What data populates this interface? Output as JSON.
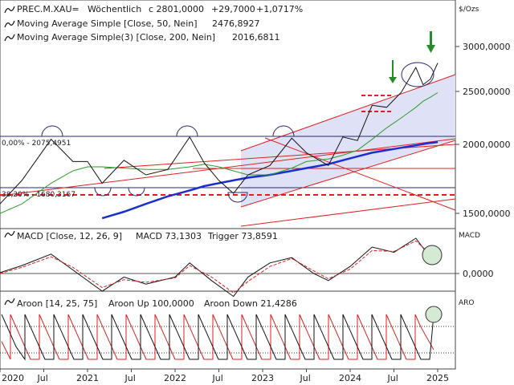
{
  "colors": {
    "price": "#111111",
    "ma50": "#2e9a2e",
    "ma200": "#1a2fd0",
    "trend": "#dd2020",
    "channel_fill": "#dfe1f6",
    "macd_signal": "#dd2020",
    "aroon_down": "#dd2020",
    "value_blue": "#1a2fd0",
    "value_green": "#2e9a2e",
    "arrow": "#2a8a2a"
  },
  "header": {
    "symbol": "PREC.M.XAU=",
    "period": "Wöchentlich",
    "last_close": "c 2801,0000",
    "change": "+29,7000",
    "change_pct": "+1,0717%",
    "ma50_label": "Moving Average Simple [Close, 50, Nein]",
    "ma50_value": "2476,8927",
    "ma200_label": "Moving Average Simple(3) [Close, 200, Nein]",
    "ma200_value": "2016,6811"
  },
  "price_panel": {
    "axis_unit": "$/Ozs",
    "ticks": [
      "3000,0000",
      "2500,0000",
      "2000,0000",
      "1500,0000"
    ],
    "fib_0_label": "0,00% - 2075,4951",
    "fib_38_label": "38,20% - 1680,3167"
  },
  "macd_panel": {
    "label": "MACD [Close, 12, 26, 9]",
    "macd_value": "MACD 73,1303",
    "trigger": "Trigger 73,8591",
    "axis_label": "MACD",
    "zero_tick": "0,0000"
  },
  "aroon_panel": {
    "label": "Aroon [14, 25, 75]",
    "up": "Aroon Up 100,0000",
    "down": "Aroon Down 21,4286",
    "axis_label": "ARO"
  },
  "x_axis": {
    "labels": [
      "2020",
      "Jul",
      "2021",
      "Jul",
      "2022",
      "Jul",
      "2023",
      "Jul",
      "2024",
      "Jul",
      "2025"
    ]
  },
  "chart_data": [
    {
      "type": "line",
      "panel": "price",
      "scale": "log",
      "ylim": [
        1400,
        3200
      ],
      "x": [
        "2020-01",
        "2020-04",
        "2020-08",
        "2020-11",
        "2021-01",
        "2021-03",
        "2021-06",
        "2021-09",
        "2021-12",
        "2022-03",
        "2022-05",
        "2022-07",
        "2022-09",
        "2022-11",
        "2023-02",
        "2023-05",
        "2023-07",
        "2023-10",
        "2023-12",
        "2024-02",
        "2024-04",
        "2024-06",
        "2024-08",
        "2024-10",
        "2024-11",
        "2024-12",
        "2025-01"
      ],
      "series": [
        {
          "name": "PREC.M.XAU=",
          "values": [
            1560,
            1720,
            2040,
            1860,
            1860,
            1700,
            1870,
            1760,
            1800,
            2060,
            1850,
            1720,
            1630,
            1760,
            1830,
            2050,
            1930,
            1830,
            2060,
            2030,
            2350,
            2330,
            2480,
            2750,
            2560,
            2620,
            2801
          ]
        },
        {
          "name": "Moving Average Simple [Close, 50, Nein]",
          "values": [
            1500,
            1560,
            1700,
            1790,
            1820,
            1820,
            1810,
            1800,
            1800,
            1820,
            1840,
            1820,
            1790,
            1760,
            1760,
            1810,
            1860,
            1880,
            1910,
            1950,
            2040,
            2140,
            2230,
            2330,
            2390,
            2430,
            2477
          ]
        },
        {
          "name": "Moving Average Simple(3) [Close, 200, Nein]",
          "values": [
            null,
            null,
            null,
            null,
            null,
            1470,
            1510,
            1560,
            1610,
            1650,
            1680,
            1700,
            1720,
            1740,
            1760,
            1790,
            1810,
            1840,
            1870,
            1900,
            1930,
            1950,
            1970,
            1990,
            2000,
            2010,
            2017
          ]
        }
      ]
    },
    {
      "type": "line",
      "panel": "macd",
      "x": [
        "2020-01",
        "2020-04",
        "2020-08",
        "2020-11",
        "2021-03",
        "2021-06",
        "2021-09",
        "2022-01",
        "2022-03",
        "2022-06",
        "2022-09",
        "2022-11",
        "2023-02",
        "2023-05",
        "2023-08",
        "2023-10",
        "2024-01",
        "2024-04",
        "2024-07",
        "2024-10",
        "2024-12",
        "2025-01"
      ],
      "series": [
        {
          "name": "MACD",
          "values": [
            5,
            45,
            110,
            20,
            -100,
            -20,
            -60,
            -20,
            60,
            -40,
            -130,
            -20,
            60,
            90,
            0,
            -40,
            40,
            150,
            120,
            200,
            90,
            73
          ]
        },
        {
          "name": "Trigger",
          "values": [
            0,
            35,
            95,
            35,
            -80,
            -35,
            -50,
            -25,
            45,
            -20,
            -110,
            -45,
            40,
            85,
            15,
            -30,
            25,
            130,
            125,
            185,
            110,
            74
          ]
        }
      ]
    },
    {
      "type": "line",
      "panel": "aroon",
      "ylim": [
        0,
        100
      ],
      "series": [
        {
          "name": "Aroon Up",
          "last": 100
        },
        {
          "name": "Aroon Down",
          "last": 21.4286
        }
      ]
    }
  ]
}
